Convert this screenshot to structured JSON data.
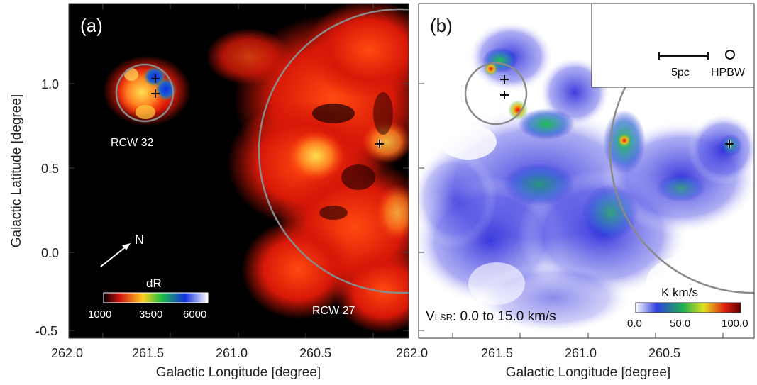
{
  "panel_a": {
    "label": "(a)",
    "source_labels": [
      "RCW 32",
      "RCW 27"
    ],
    "north_label": "N",
    "colorbar": {
      "title": "dR",
      "ticks": [
        "1000",
        "3500",
        "6000"
      ]
    }
  },
  "panel_b": {
    "label": "(b)",
    "velocity_label_main": "V",
    "velocity_label_sub": "LSR",
    "velocity_label_rest": ": 0.0 to 15.0 km/s",
    "scale_bar_label": "5pc",
    "beam_label": "HPBW",
    "colorbar": {
      "title": "K km/s",
      "ticks": [
        "0.0",
        "50.0",
        "100.0"
      ]
    }
  },
  "axes": {
    "xlabel": "Galactic Longitude [degree]",
    "ylabel": "Galactic Latitude [degree]",
    "x_ticks_a": [
      "262.0",
      "261.5",
      "261.0",
      "260.5"
    ],
    "x_ticks_b": [
      "262.0",
      "261.5",
      "261.0",
      "260.5"
    ],
    "y_ticks": [
      "1.0",
      "0.5",
      "0.0",
      "-0.5"
    ]
  },
  "colors": {
    "panel_a_background": "#000000",
    "panel_b_background": "#ffffff",
    "circle": "#8a8a8a"
  }
}
